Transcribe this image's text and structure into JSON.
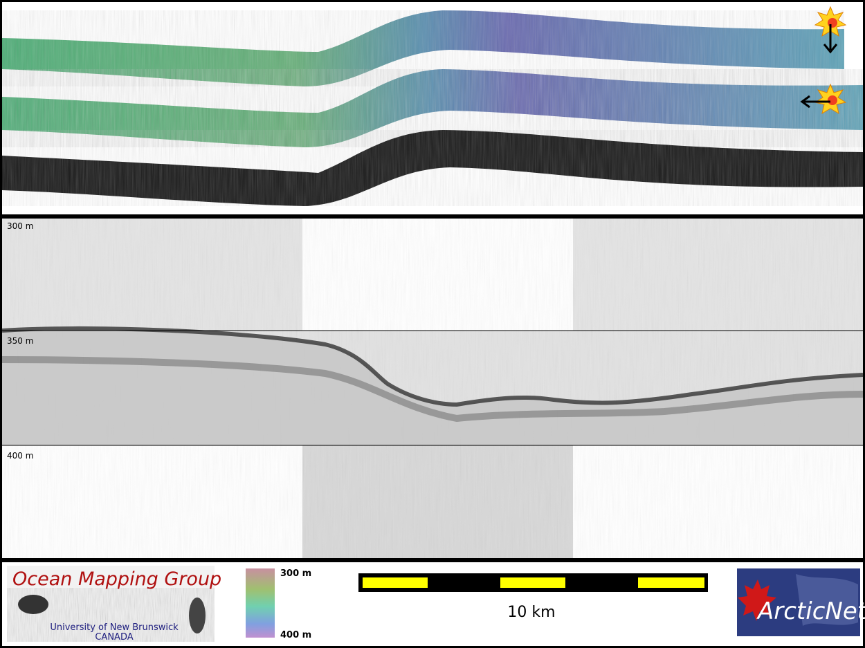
{
  "depth_labels": [
    "300 m",
    "350 m",
    "400 m"
  ],
  "logo": {
    "title": "Ocean Mapping Group",
    "university": "University of New Brunswick",
    "country": "CANADA"
  },
  "colorbar": {
    "top": "300 m",
    "bottom": "400 m"
  },
  "scale_bar": {
    "label": "10 km"
  },
  "partner_logo": {
    "name": "ArcticNet"
  }
}
